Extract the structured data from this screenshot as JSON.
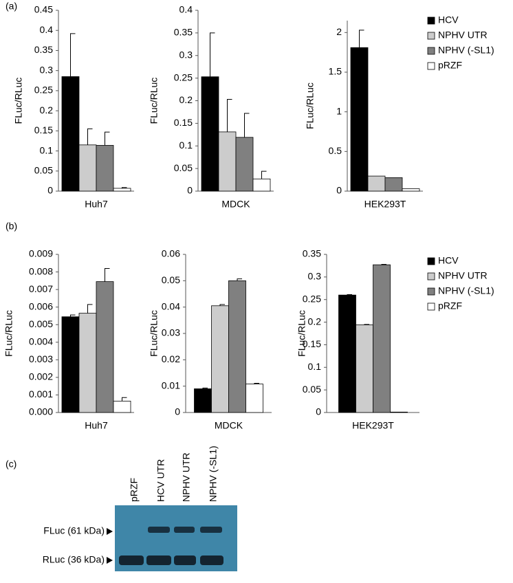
{
  "chart_data": [
    {
      "type": "bar",
      "panel_label": "(a)",
      "ylabel": "FLuc/RLuc",
      "categories": [
        "Huh7"
      ],
      "ylim": [
        0,
        0.45
      ],
      "yticks": [
        0,
        0.05,
        0.1,
        0.15,
        0.2,
        0.25,
        0.3,
        0.35,
        0.4,
        0.45
      ],
      "series": [
        {
          "color": "#000000",
          "values": [
            0.285
          ],
          "errors": [
            0.107
          ]
        },
        {
          "color": "#cccccc",
          "values": [
            0.115
          ],
          "errors": [
            0.04
          ]
        },
        {
          "color": "#808080",
          "values": [
            0.114
          ],
          "errors": [
            0.033
          ]
        },
        {
          "color": "#ffffff",
          "values": [
            0.007
          ],
          "errors": [
            0.002
          ]
        }
      ]
    },
    {
      "type": "bar",
      "ylabel": "FLuc/RLuc",
      "categories": [
        "MDCK"
      ],
      "ylim": [
        0,
        0.4
      ],
      "yticks": [
        0,
        0.05,
        0.1,
        0.15,
        0.2,
        0.25,
        0.3,
        0.35,
        0.4
      ],
      "series": [
        {
          "color": "#000000",
          "values": [
            0.253
          ],
          "errors": [
            0.097
          ]
        },
        {
          "color": "#cccccc",
          "values": [
            0.131
          ],
          "errors": [
            0.072
          ]
        },
        {
          "color": "#808080",
          "values": [
            0.119
          ],
          "errors": [
            0.053
          ]
        },
        {
          "color": "#ffffff",
          "values": [
            0.027
          ],
          "errors": [
            0.017
          ]
        }
      ]
    },
    {
      "type": "bar",
      "ylabel": "FLuc/RLuc",
      "categories": [
        "HEK293T"
      ],
      "ylim": [
        0,
        2.15
      ],
      "yticks": [
        0,
        0.5,
        1,
        1.5,
        2
      ],
      "series": [
        {
          "name": "HCV",
          "color": "#000000",
          "values": [
            1.81
          ],
          "errors": [
            0.22
          ]
        },
        {
          "name": "NPHV UTR",
          "color": "#cccccc",
          "values": [
            0.19
          ]
        },
        {
          "name": "NPHV (-SL1)",
          "color": "#808080",
          "values": [
            0.17
          ]
        },
        {
          "name": "pRZF",
          "color": "#ffffff",
          "values": [
            0.03
          ]
        }
      ]
    },
    {
      "type": "bar",
      "panel_label": "(b)",
      "ylabel": "FLuc/RLuc",
      "categories": [
        "Huh7"
      ],
      "ylim": [
        0,
        0.009
      ],
      "yticks": [
        {
          "value": 0,
          "label": "0.000"
        },
        0.001,
        0.002,
        0.003,
        0.004,
        0.005,
        0.006,
        0.007,
        0.008,
        0.009
      ],
      "series": [
        {
          "color": "#000000",
          "values": [
            0.00545
          ],
          "errors": [
            0.0001
          ]
        },
        {
          "color": "#cccccc",
          "values": [
            0.00565
          ],
          "errors": [
            0.0005
          ]
        },
        {
          "color": "#808080",
          "values": [
            0.00745
          ],
          "errors": [
            0.00075
          ]
        },
        {
          "color": "#ffffff",
          "values": [
            0.00065
          ],
          "errors": [
            0.0002
          ]
        }
      ]
    },
    {
      "type": "bar",
      "ylabel": "FLuc/RLuc",
      "categories": [
        "MDCK"
      ],
      "ylim": [
        0,
        0.06
      ],
      "yticks": [
        0,
        0.01,
        0.02,
        0.03,
        0.04,
        0.05,
        0.06
      ],
      "series": [
        {
          "color": "#000000",
          "values": [
            0.009
          ],
          "errors": [
            0.0003
          ]
        },
        {
          "color": "#cccccc",
          "values": [
            0.0405
          ],
          "errors": [
            0.0005
          ]
        },
        {
          "color": "#808080",
          "values": [
            0.05
          ],
          "errors": [
            0.0007
          ]
        },
        {
          "color": "#ffffff",
          "values": [
            0.0108
          ],
          "errors": [
            0.0003
          ]
        }
      ]
    },
    {
      "type": "bar",
      "ylabel": "FLuc/RLuc",
      "categories": [
        "HEK293T"
      ],
      "ylim": [
        0,
        0.35
      ],
      "yticks": [
        0,
        0.05,
        0.1,
        0.15,
        0.2,
        0.25,
        0.3,
        0.35
      ],
      "series": [
        {
          "name": "HCV",
          "color": "#000000",
          "values": [
            0.26
          ],
          "errors": [
            0.001
          ]
        },
        {
          "name": "NPHV UTR",
          "color": "#cccccc",
          "values": [
            0.194
          ],
          "errors": [
            0.001
          ]
        },
        {
          "name": "NPHV (-SL1)",
          "color": "#808080",
          "values": [
            0.327
          ],
          "errors": [
            0.001
          ]
        },
        {
          "name": "pRZF",
          "color": "#ffffff",
          "values": [
            0.001
          ]
        }
      ]
    }
  ],
  "blot": {
    "panel_label": "(c)",
    "lanes": [
      "pRZF",
      "HCV UTR",
      "NPHV UTR",
      "NPHV (-SL1)"
    ],
    "bands": [
      "FLuc (61 kDa)",
      "RLuc (36 kDa)"
    ]
  }
}
